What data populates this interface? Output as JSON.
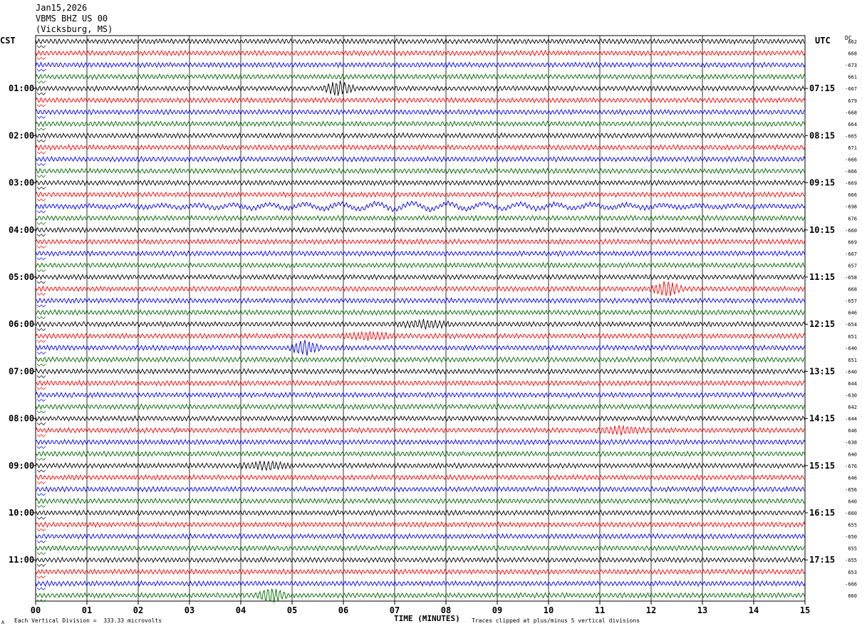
{
  "header": {
    "date": "Jan15,2026",
    "station": "VBMS BHZ US 00",
    "location": "(Vicksburg, MS)"
  },
  "timezones": {
    "left": "CST",
    "right": "UTC",
    "dc": "DC"
  },
  "footer": {
    "scale_note": "Each Vertical Division =  333.33 microvolts",
    "x_title": "TIME (MINUTES)",
    "clip_note": "Traces clipped at plus/minus 5 vertical divisions",
    "corner_mark": "A"
  },
  "colors": {
    "trace_cycle": [
      "#000000",
      "#ff0000",
      "#0000ff",
      "#006600"
    ],
    "grid": "#000000"
  },
  "chart_data": {
    "type": "line",
    "title": "",
    "xlabel": "TIME (MINUTES)",
    "x_ticks": [
      "00",
      "01",
      "02",
      "03",
      "04",
      "05",
      "06",
      "07",
      "08",
      "09",
      "10",
      "11",
      "12",
      "13",
      "14",
      "15"
    ],
    "xlim": [
      0,
      15
    ],
    "traces_per_hour": 4,
    "trace_count": 48,
    "left_hour_labels": [
      "01:00",
      "02:00",
      "03:00",
      "04:00",
      "05:00",
      "06:00",
      "07:00",
      "08:00",
      "09:00",
      "10:00",
      "11:00"
    ],
    "right_hour_labels": [
      "07:15",
      "08:15",
      "09:15",
      "10:15",
      "11:15",
      "12:15",
      "13:15",
      "14:15",
      "15:15",
      "16:15",
      "17:15"
    ],
    "dc_offsets": [
      "662",
      "668",
      "-673",
      "661",
      "-667",
      "679",
      "-668",
      "664",
      "-665",
      "671",
      "-666",
      "-666",
      "-669",
      "666",
      "-698",
      "676",
      "-660",
      "669",
      "-667",
      "657",
      "-658",
      "668",
      "-657",
      "646",
      "-654",
      "651",
      "-640",
      "651",
      "-640",
      "644",
      "-630",
      "642",
      "-644",
      "646",
      "-638",
      "640",
      "-676",
      "646",
      "-656",
      "640",
      "-660",
      "655",
      "-650",
      "655",
      "-655",
      "653",
      "-666",
      "660"
    ],
    "events": [
      {
        "trace": 4,
        "minute": 5.9,
        "amplitude": "high"
      },
      {
        "trace": 14,
        "minute": 7.0,
        "amplitude": "long-period"
      },
      {
        "trace": 21,
        "minute": 12.3,
        "amplitude": "high"
      },
      {
        "trace": 24,
        "minute": 7.6,
        "amplitude": "medium"
      },
      {
        "trace": 25,
        "minute": 6.5,
        "amplitude": "medium"
      },
      {
        "trace": 26,
        "minute": 5.25,
        "amplitude": "high"
      },
      {
        "trace": 33,
        "minute": 11.4,
        "amplitude": "medium"
      },
      {
        "trace": 36,
        "minute": 4.5,
        "amplitude": "medium"
      },
      {
        "trace": 47,
        "minute": 4.6,
        "amplitude": "high"
      }
    ]
  }
}
